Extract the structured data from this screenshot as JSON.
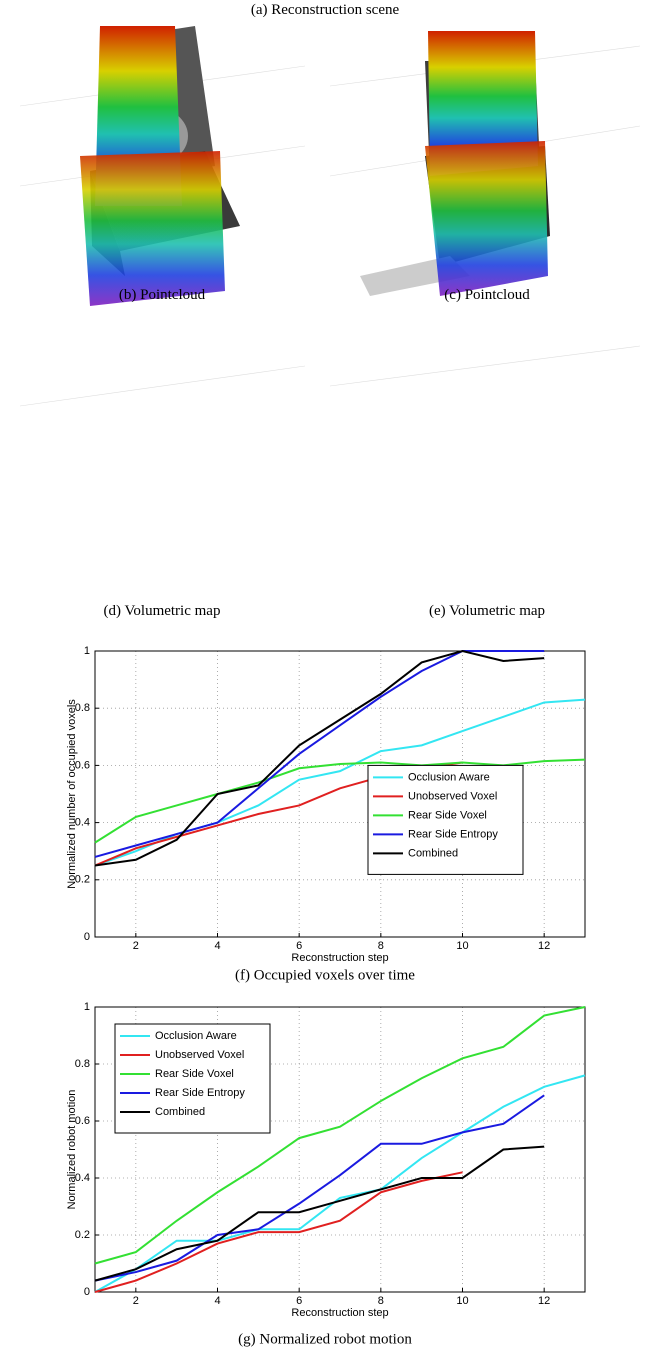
{
  "figure": {
    "captions": [
      "(a) Reconstruction scene",
      "(b) Pointcloud",
      "(c) Pointcloud",
      "(d) Volumetric map",
      "(e) Volumetric map"
    ]
  },
  "chart_data": [
    {
      "type": "line",
      "caption": "(f) Occupied voxels over time",
      "xlabel": "Reconstruction step",
      "ylabel": "Normalized number of occupied voxels",
      "x": [
        1,
        2,
        3,
        4,
        5,
        6,
        7,
        8,
        9,
        10,
        11,
        12,
        13
      ],
      "xlim": [
        1,
        13
      ],
      "xticks": [
        2,
        4,
        6,
        8,
        10,
        12
      ],
      "ylim": [
        0,
        1
      ],
      "yticks": [
        0,
        0.2,
        0.4,
        0.6,
        0.8,
        1
      ],
      "grid": true,
      "legend": "center right",
      "series": [
        {
          "name": "Occlusion Aware",
          "color": "#33e6f2",
          "values": [
            0.25,
            0.3,
            0.36,
            0.4,
            0.46,
            0.55,
            0.58,
            0.65,
            0.67,
            0.72,
            0.77,
            0.82,
            0.83
          ]
        },
        {
          "name": "Unobserved Voxel",
          "color": "#e02020",
          "values": [
            0.25,
            0.31,
            0.35,
            0.39,
            0.43,
            0.46,
            0.52,
            0.56,
            0.59,
            0.61,
            null,
            null,
            null
          ]
        },
        {
          "name": "Rear Side Voxel",
          "color": "#33e033",
          "values": [
            0.33,
            0.42,
            0.46,
            0.5,
            0.54,
            0.59,
            0.605,
            0.61,
            0.6,
            0.61,
            0.6,
            0.615,
            0.62
          ]
        },
        {
          "name": "Rear Side Entropy",
          "color": "#1a1ae0",
          "values": [
            0.28,
            0.32,
            0.36,
            0.4,
            0.52,
            0.64,
            0.74,
            0.84,
            0.93,
            1.0,
            1.0,
            1.0,
            null
          ]
        },
        {
          "name": "Combined",
          "color": "#000000",
          "values": [
            0.25,
            0.27,
            0.34,
            0.5,
            0.53,
            0.67,
            0.76,
            0.85,
            0.96,
            1.0,
            0.965,
            0.975,
            null
          ]
        }
      ]
    },
    {
      "type": "line",
      "caption": "(g) Normalized robot motion",
      "xlabel": "Reconstruction step",
      "ylabel": "Normalized robot motion",
      "x": [
        1,
        2,
        3,
        4,
        5,
        6,
        7,
        8,
        9,
        10,
        11,
        12,
        13
      ],
      "xlim": [
        1,
        13
      ],
      "xticks": [
        2,
        4,
        6,
        8,
        10,
        12
      ],
      "ylim": [
        0,
        1
      ],
      "yticks": [
        0,
        0.2,
        0.4,
        0.6,
        0.8,
        1
      ],
      "grid": true,
      "legend": "upper left",
      "series": [
        {
          "name": "Occlusion Aware",
          "color": "#33e6f2",
          "values": [
            0.0,
            0.08,
            0.18,
            0.18,
            0.22,
            0.22,
            0.33,
            0.36,
            0.47,
            0.56,
            0.65,
            0.72,
            0.76
          ]
        },
        {
          "name": "Unobserved Voxel",
          "color": "#e02020",
          "values": [
            0.0,
            0.04,
            0.1,
            0.17,
            0.21,
            0.21,
            0.25,
            0.35,
            0.39,
            0.42,
            null,
            null,
            null
          ]
        },
        {
          "name": "Rear Side Voxel",
          "color": "#33e033",
          "values": [
            0.1,
            0.14,
            0.25,
            0.35,
            0.44,
            0.54,
            0.58,
            0.67,
            0.75,
            0.82,
            0.86,
            0.97,
            1.0
          ]
        },
        {
          "name": "Rear Side Entropy",
          "color": "#1a1ae0",
          "values": [
            0.04,
            0.07,
            0.11,
            0.2,
            0.22,
            0.31,
            0.41,
            0.52,
            0.52,
            0.56,
            0.59,
            0.69,
            null
          ]
        },
        {
          "name": "Combined",
          "color": "#000000",
          "values": [
            0.04,
            0.08,
            0.15,
            0.18,
            0.28,
            0.28,
            0.32,
            0.36,
            0.4,
            0.4,
            0.5,
            0.51,
            null
          ]
        }
      ]
    }
  ]
}
